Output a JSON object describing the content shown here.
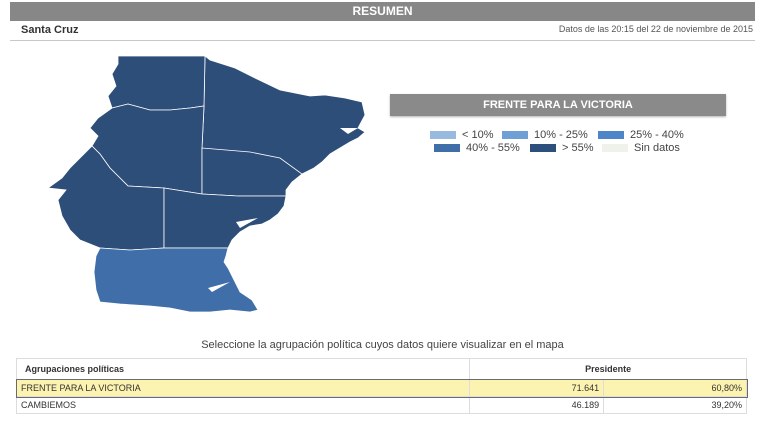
{
  "header": {
    "title": "RESUMEN"
  },
  "subheader": {
    "region": "Santa Cruz",
    "timestamp": "Datos de las 20:15 del 22 de noviembre de 2015"
  },
  "party_panel": {
    "title": "FRENTE PARA LA VICTORIA"
  },
  "legend": {
    "items": [
      {
        "label": "< 10%",
        "color": "#98badf"
      },
      {
        "label": "10% - 25%",
        "color": "#6ea0d6"
      },
      {
        "label": "25% - 40%",
        "color": "#4c86c8"
      },
      {
        "label": "40% - 55%",
        "color": "#3f6ea8"
      },
      {
        "label": "> 55%",
        "color": "#2c4f7c"
      },
      {
        "label": "Sin datos",
        "color": "#eef2ea"
      }
    ]
  },
  "map": {
    "colors": {
      "high": "#2e4e7a",
      "mid": "#3f6ea8",
      "border": "#ffffff"
    }
  },
  "select_note": "Seleccione la agrupación política cuyos datos quiere visualizar en el mapa",
  "table": {
    "headers": {
      "party": "Agrupaciones políticas",
      "office": "Presidente"
    },
    "rows": [
      {
        "party": "FRENTE PARA LA VICTORIA",
        "votes": "71.641",
        "percent": "60,80%",
        "selected": true
      },
      {
        "party": "CAMBIEMOS",
        "votes": "46.189",
        "percent": "39,20%",
        "selected": false
      }
    ]
  }
}
